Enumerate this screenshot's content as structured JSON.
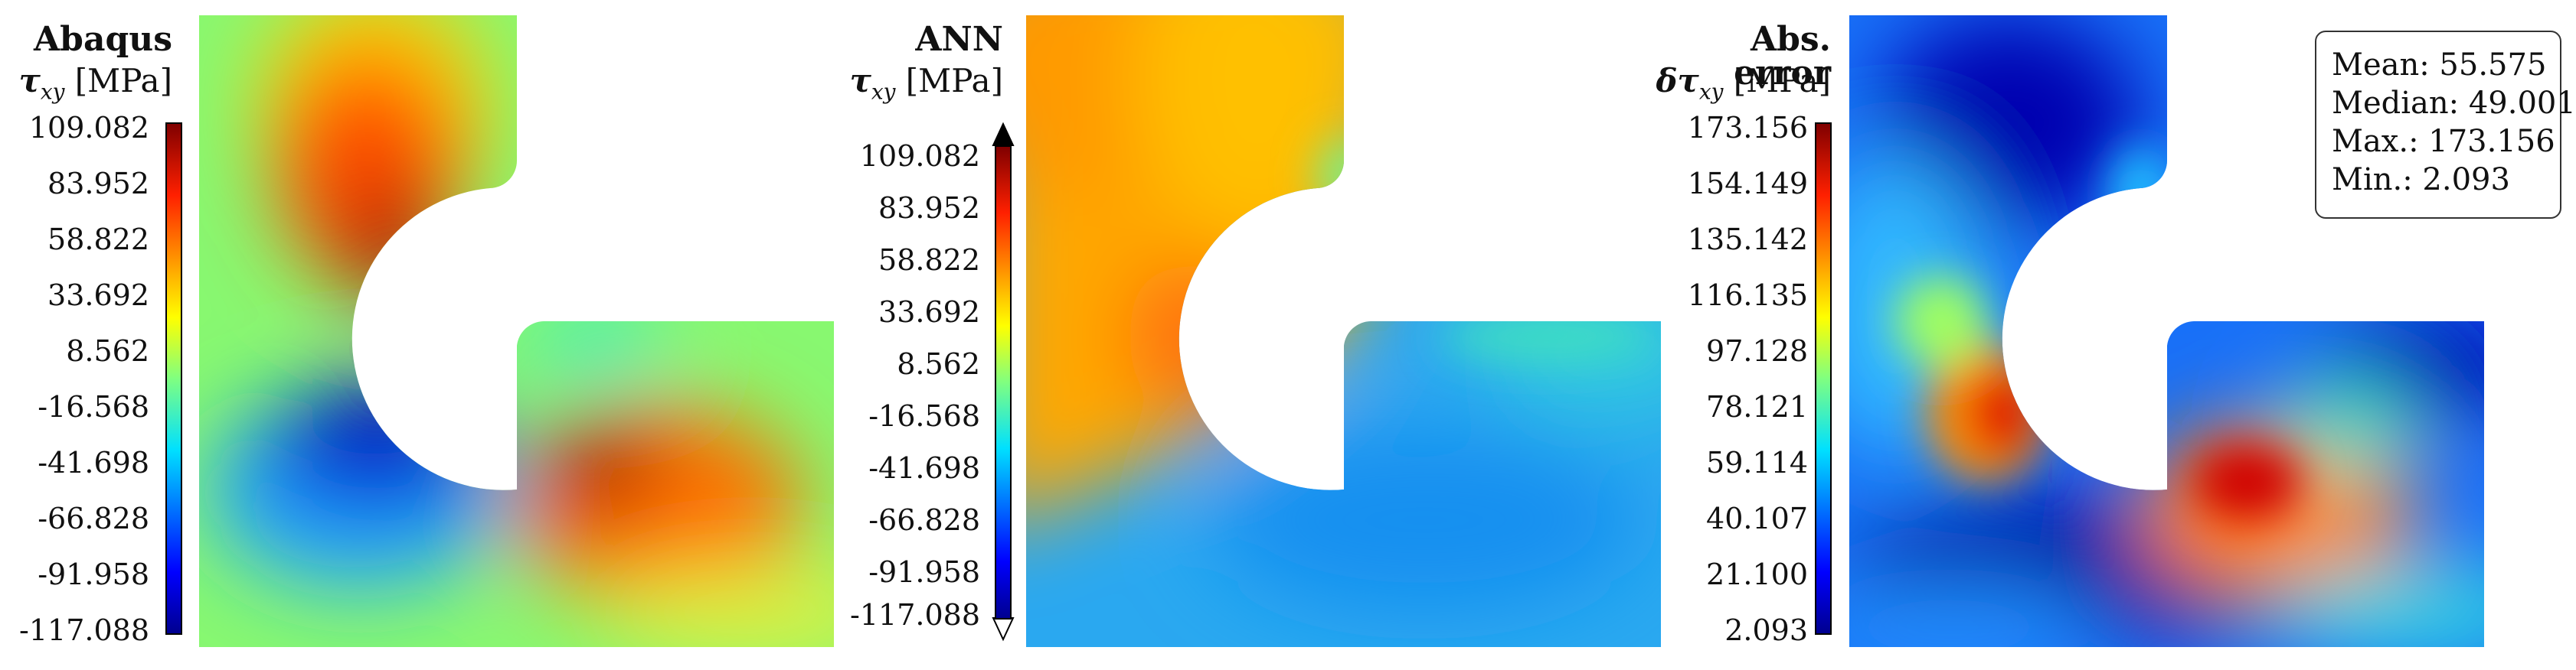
{
  "panels": [
    {
      "title": "Abaqus",
      "quantity": {
        "symbol": "τ",
        "sub": "xy",
        "unit": "[MPa]"
      },
      "ticks": [
        "109.082",
        "83.952",
        "58.822",
        "33.692",
        "8.562",
        "-16.568",
        "-41.698",
        "-66.828",
        "-91.958",
        "-117.088"
      ]
    },
    {
      "title": "ANN",
      "quantity": {
        "symbol": "τ",
        "sub": "xy",
        "unit": "[MPa]"
      },
      "ticks": [
        "109.082",
        "83.952",
        "58.822",
        "33.692",
        "8.562",
        "-16.568",
        "-41.698",
        "-66.828",
        "-91.958",
        "-117.088"
      ]
    },
    {
      "title": "Abs. error",
      "quantity": {
        "symbol": "δτ",
        "sub": "xy",
        "unit": "[MPa]"
      },
      "ticks": [
        "173.156",
        "154.149",
        "135.142",
        "116.135",
        "97.128",
        "78.121",
        "59.114",
        "40.107",
        "21.100",
        "2.093"
      ]
    }
  ],
  "stats": {
    "mean": "Mean: 55.575",
    "median": "Median: 49.001",
    "max": "Max.: 173.156",
    "min": "Min.: 2.093"
  },
  "colors": {
    "jet_dark_blue": "#00008f",
    "jet_blue": "#0060ff",
    "jet_cyan": "#20e0e0",
    "jet_green": "#80ff60",
    "jet_yellow": "#f0f020",
    "jet_orange": "#ff8000",
    "jet_red": "#e00000",
    "jet_dark_red": "#800000"
  }
}
